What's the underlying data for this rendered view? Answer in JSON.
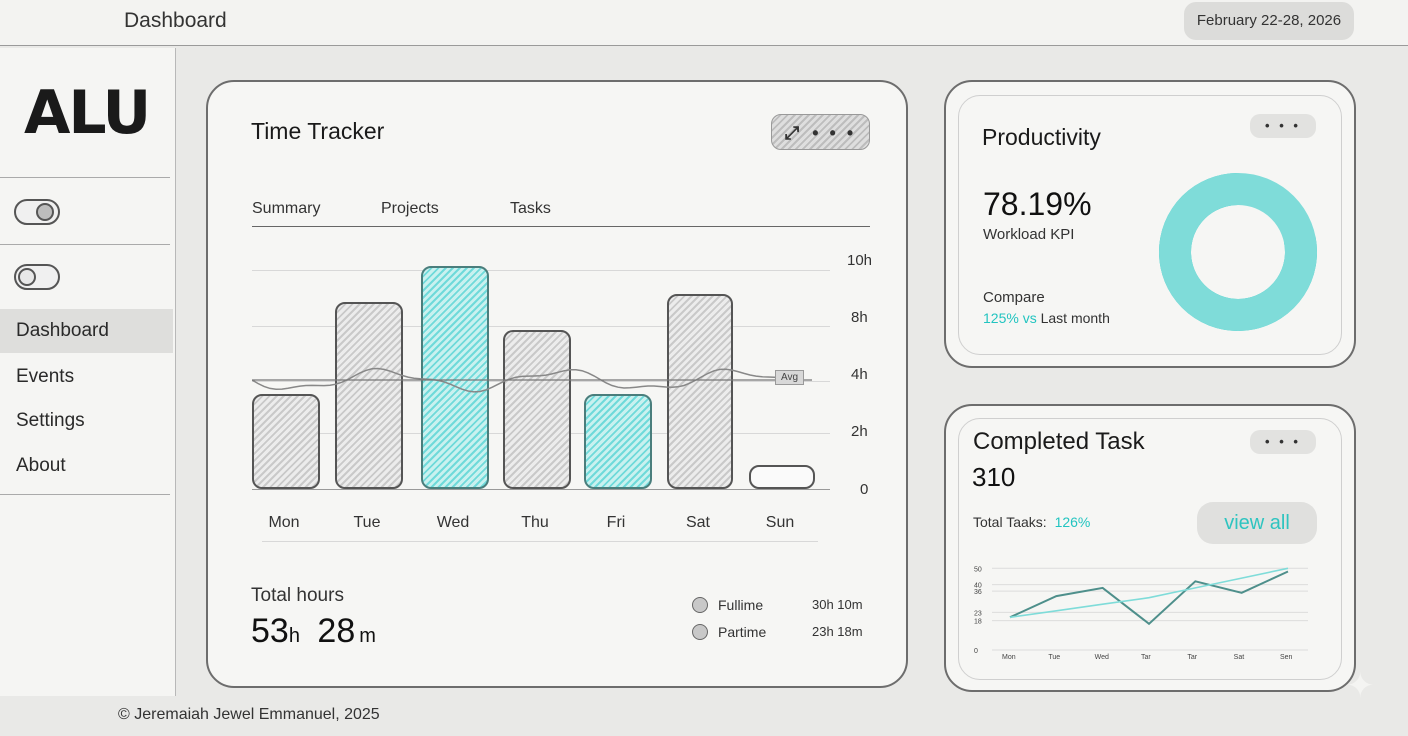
{
  "header": {
    "title": "Dashboard",
    "date_range": "February 22-28, 2026"
  },
  "sidebar": {
    "logo": "ALU",
    "toggles": [
      {
        "name": "toggle-1"
      },
      {
        "name": "toggle-2"
      }
    ],
    "items": [
      {
        "label": "Dashboard",
        "active": true
      },
      {
        "label": "Events"
      },
      {
        "label": "Settings"
      },
      {
        "label": "About"
      }
    ]
  },
  "footer": {
    "copyright": "© Jeremaiah Jewel Emmanuel, 2025"
  },
  "time_tracker": {
    "title": "Time Tracker",
    "more": "• • •",
    "tabs": [
      "Summary",
      "Projects",
      "Tasks"
    ],
    "avg_label": "Avg",
    "total_label": "Total hours",
    "total_hours": "53",
    "total_h_unit": "h",
    "total_minutes": "28",
    "total_m_unit": "m",
    "legend": [
      {
        "label": "Fullime",
        "value": "30h 10m"
      },
      {
        "label": "Partime",
        "value": "23h 18m"
      }
    ]
  },
  "chart_data": [
    {
      "type": "bar",
      "categories": [
        "Mon",
        "Tue",
        "Wed",
        "Thu",
        "Fri",
        "Sat",
        "Sun"
      ],
      "values": [
        3.4,
        6.7,
        8.0,
        5.7,
        3.4,
        7.0,
        0.8
      ],
      "highlighted": [
        false,
        false,
        true,
        false,
        true,
        false,
        false
      ],
      "y_ticks": [
        "10h",
        "8h",
        "4h",
        "2h",
        "0"
      ],
      "average": 3.9,
      "colors": {
        "default": "#c9c9c9",
        "highlight": "#5fd6d3"
      }
    },
    {
      "type": "pie",
      "title": "Productivity",
      "values": [
        78.19,
        21.81
      ],
      "colors": [
        "#1cc8c5",
        "#7fdcd9"
      ]
    },
    {
      "type": "line",
      "categories": [
        "Mon",
        "Tue",
        "Wed",
        "Tar",
        "Tar",
        "Sat",
        "Sen"
      ],
      "y_ticks": [
        "50",
        "40",
        "36",
        "23",
        "18",
        "0"
      ],
      "series": [
        {
          "values": [
            20,
            33,
            38,
            16,
            42,
            35,
            48
          ],
          "color": "#4e8f8b"
        },
        {
          "values": [
            20,
            24,
            28,
            32,
            38,
            44,
            50
          ],
          "color": "#7fdcd9"
        }
      ]
    }
  ],
  "productivity": {
    "title": "Productivity",
    "more": "• • •",
    "value": "78.19%",
    "kpi_label": "Workload KPI",
    "compare_label": "Compare",
    "compare_pct": "125% vs",
    "compare_period": "Last month"
  },
  "completed": {
    "title": "Completed Task",
    "more": "• • •",
    "count": "310",
    "total_label": "Total Taaks:",
    "total_pct": "126%",
    "view_all": "view all"
  },
  "colors": {
    "accent": "#1cc8c5",
    "border": "#6d6d6d"
  }
}
